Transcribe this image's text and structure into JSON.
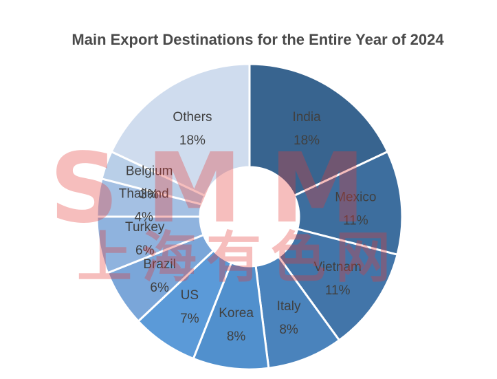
{
  "chart_data": {
    "type": "pie",
    "title": "Main Export Destinations for the Entire Year of 2024",
    "categories": [
      "India",
      "Mexico",
      "Vietnam",
      "Italy",
      "Korea",
      "US",
      "Brazil",
      "Turkey",
      "Thailand",
      "Belgium",
      "Others"
    ],
    "values": [
      18,
      11,
      11,
      8,
      8,
      7,
      6,
      6,
      4,
      3,
      18
    ],
    "value_labels": [
      "18%",
      "11%",
      "11%",
      "8%",
      "8%",
      "7%",
      "6%",
      "6%",
      "4%",
      "3%",
      "18%"
    ],
    "colors": [
      "#38648f",
      "#3d6e9e",
      "#4275a9",
      "#4a83bc",
      "#5190cd",
      "#5b9ad8",
      "#7aa6d9",
      "#8fb3de",
      "#a4c0e3",
      "#b9cfe8",
      "#cfdcee"
    ],
    "donut": true,
    "legend": "none"
  },
  "watermark": {
    "logo": "SMM",
    "text": "上海有色网"
  }
}
